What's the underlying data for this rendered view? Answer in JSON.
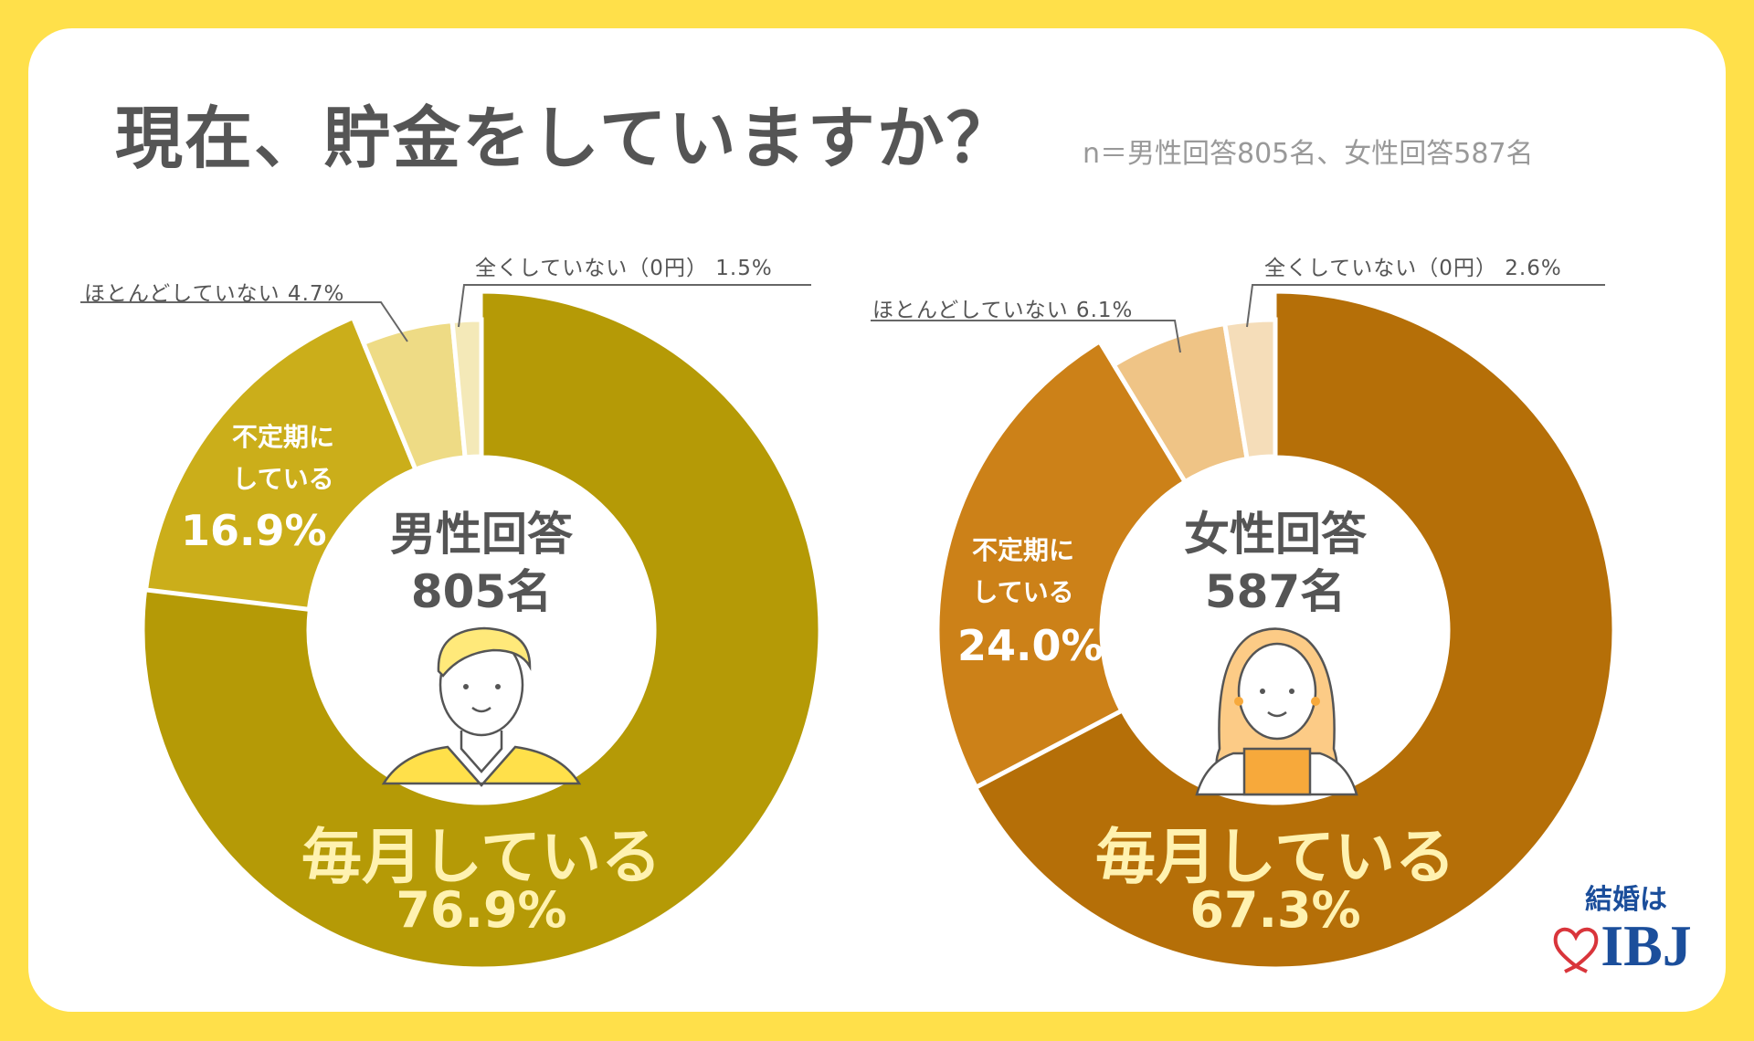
{
  "title": "現在、貯金をしていますか？",
  "subtitle": "n＝男性回答805名、女性回答587名",
  "colors": {
    "background": "#FFE04A"
  },
  "logo": {
    "text_top": "結婚は",
    "text_main": "IBJ"
  },
  "chart_data": [
    {
      "type": "pie",
      "variant": "donut",
      "center_title": "男性回答",
      "center_count": "805名",
      "categories": [
        "毎月している",
        "不定期にしている",
        "ほとんどしていない",
        "全くしていない（0円）"
      ],
      "values": [
        76.9,
        16.9,
        4.7,
        1.5
      ],
      "value_labels": [
        "76.9%",
        "16.9%",
        "4.7%",
        "1.5%"
      ],
      "label_lines": {
        "main": "毎月している",
        "irregular_1": "不定期に",
        "irregular_2": "している",
        "rarely": "ほとんどしていない 4.7%",
        "never": "全くしていない（0円） 1.5%"
      },
      "colors": [
        "#B59A06",
        "#CBAE1A",
        "#EEDB85",
        "#F4E9B8"
      ]
    },
    {
      "type": "pie",
      "variant": "donut",
      "center_title": "女性回答",
      "center_count": "587名",
      "categories": [
        "毎月している",
        "不定期にしている",
        "ほとんどしていない",
        "全くしていない（0円）"
      ],
      "values": [
        67.3,
        24.0,
        6.1,
        2.6
      ],
      "value_labels": [
        "67.3%",
        "24.0%",
        "6.1%",
        "2.6%"
      ],
      "label_lines": {
        "main": "毎月している",
        "irregular_1": "不定期に",
        "irregular_2": "している",
        "rarely": "ほとんどしていない 6.1%",
        "never": "全くしていない（0円） 2.6%"
      },
      "colors": [
        "#B56F08",
        "#CC8118",
        "#EFC486",
        "#F5DDB9"
      ]
    }
  ]
}
